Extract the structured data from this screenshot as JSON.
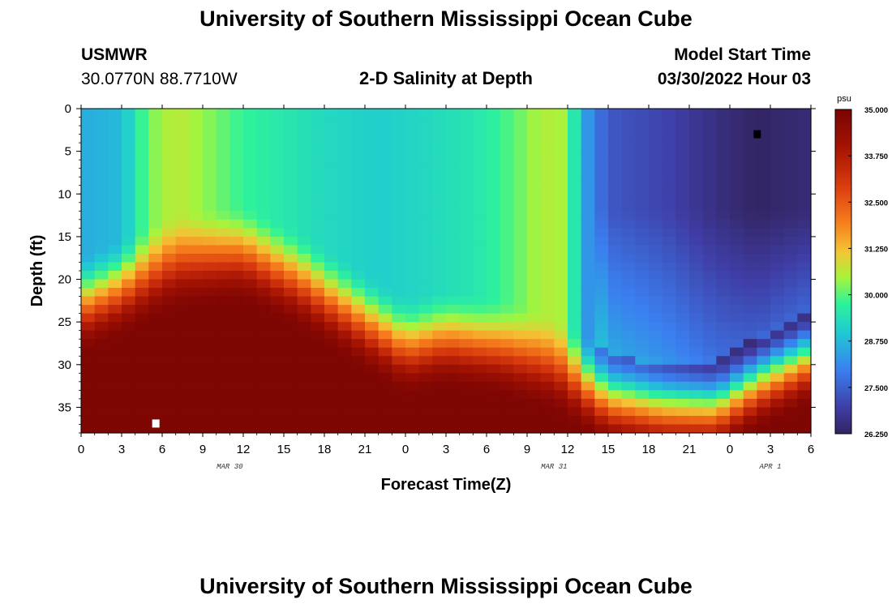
{
  "page": {
    "title_top": "University of Southern Mississippi Ocean Cube",
    "title_bottom": "University of Southern Mississippi Ocean Cube",
    "station_id": "USMWR",
    "station_coords": "30.0770N  88.7710W",
    "model_start_label": "Model Start Time",
    "model_start_value": "03/30/2022 Hour 03"
  },
  "chart_data": {
    "type": "heatmap",
    "title": "2-D Salinity at Depth",
    "xlabel": "Forecast Time(Z)",
    "ylabel": "Depth (ft)",
    "units": "psu",
    "x_range_hours": [
      0,
      54
    ],
    "x_tick_labels": [
      "0",
      "3",
      "6",
      "9",
      "12",
      "15",
      "18",
      "21",
      "0",
      "3",
      "6",
      "9",
      "12",
      "15",
      "18",
      "21",
      "0",
      "3",
      "6"
    ],
    "date_labels": [
      {
        "hour": 11,
        "label": "MAR 30"
      },
      {
        "hour": 35,
        "label": "MAR 31"
      },
      {
        "hour": 51,
        "label": "APR 1"
      }
    ],
    "y_range_ft": [
      0,
      38
    ],
    "y_tick_values": [
      0,
      5,
      10,
      15,
      20,
      25,
      30,
      35
    ],
    "colorbar": {
      "min": 26.25,
      "max": 35.0,
      "tick_labels": [
        "35.000",
        "33.750",
        "32.500",
        "31.250",
        "30.000",
        "28.750",
        "27.500",
        "26.250"
      ],
      "stops": [
        {
          "v": 26.0,
          "c": "#2e1a47"
        },
        {
          "v": 27.0,
          "c": "#3f3ea6"
        },
        {
          "v": 28.0,
          "c": "#3b7ff0"
        },
        {
          "v": 29.0,
          "c": "#1fc9d4"
        },
        {
          "v": 29.8,
          "c": "#2ef39a"
        },
        {
          "v": 30.5,
          "c": "#a7f43c"
        },
        {
          "v": 31.2,
          "c": "#f4c334"
        },
        {
          "v": 32.0,
          "c": "#f57c1c"
        },
        {
          "v": 33.0,
          "c": "#d93a0e"
        },
        {
          "v": 34.0,
          "c": "#a51303"
        },
        {
          "v": 35.0,
          "c": "#7a0403"
        }
      ]
    },
    "profile_description": "salinity (psu) at hour t and depth d, sampled on a 1-hour by 1-ft grid",
    "surface_salinity_psu": [
      {
        "hour": 0,
        "psu": 28.6
      },
      {
        "hour": 3,
        "psu": 28.8
      },
      {
        "hour": 5,
        "psu": 30.2
      },
      {
        "hour": 7,
        "psu": 30.7
      },
      {
        "hour": 9,
        "psu": 30.4
      },
      {
        "hour": 12,
        "psu": 29.8
      },
      {
        "hour": 18,
        "psu": 29.3
      },
      {
        "hour": 22,
        "psu": 29.1
      },
      {
        "hour": 26,
        "psu": 29.3
      },
      {
        "hour": 30,
        "psu": 29.6
      },
      {
        "hour": 33,
        "psu": 30.3
      },
      {
        "hour": 34,
        "psu": 30.6
      },
      {
        "hour": 36,
        "psu": 30.5
      },
      {
        "hour": 37,
        "psu": 28.6
      },
      {
        "hour": 39,
        "psu": 27.4
      },
      {
        "hour": 43,
        "psu": 27.1
      },
      {
        "hour": 47,
        "psu": 26.6
      },
      {
        "hour": 50,
        "psu": 26.3
      },
      {
        "hour": 54,
        "psu": 26.5
      }
    ],
    "halocline_depth_ft": [
      {
        "hour": 0,
        "ft": 24
      },
      {
        "hour": 3,
        "ft": 22
      },
      {
        "hour": 7,
        "ft": 19
      },
      {
        "hour": 12,
        "ft": 18
      },
      {
        "hour": 16,
        "ft": 21
      },
      {
        "hour": 20,
        "ft": 25
      },
      {
        "hour": 24,
        "ft": 29
      },
      {
        "hour": 27,
        "ft": 28
      },
      {
        "hour": 31,
        "ft": 29
      },
      {
        "hour": 35,
        "ft": 31
      },
      {
        "hour": 39,
        "ft": 35
      },
      {
        "hour": 43,
        "ft": 36
      },
      {
        "hour": 47,
        "ft": 36
      },
      {
        "hour": 50,
        "ft": 33
      },
      {
        "hour": 54,
        "ft": 30
      }
    ],
    "markers": [
      {
        "hour": 5.5,
        "depth_ft": 36.9,
        "color": "#ffffff"
      },
      {
        "hour": 50.0,
        "depth_ft": 3.0,
        "color": "#000000"
      }
    ]
  }
}
